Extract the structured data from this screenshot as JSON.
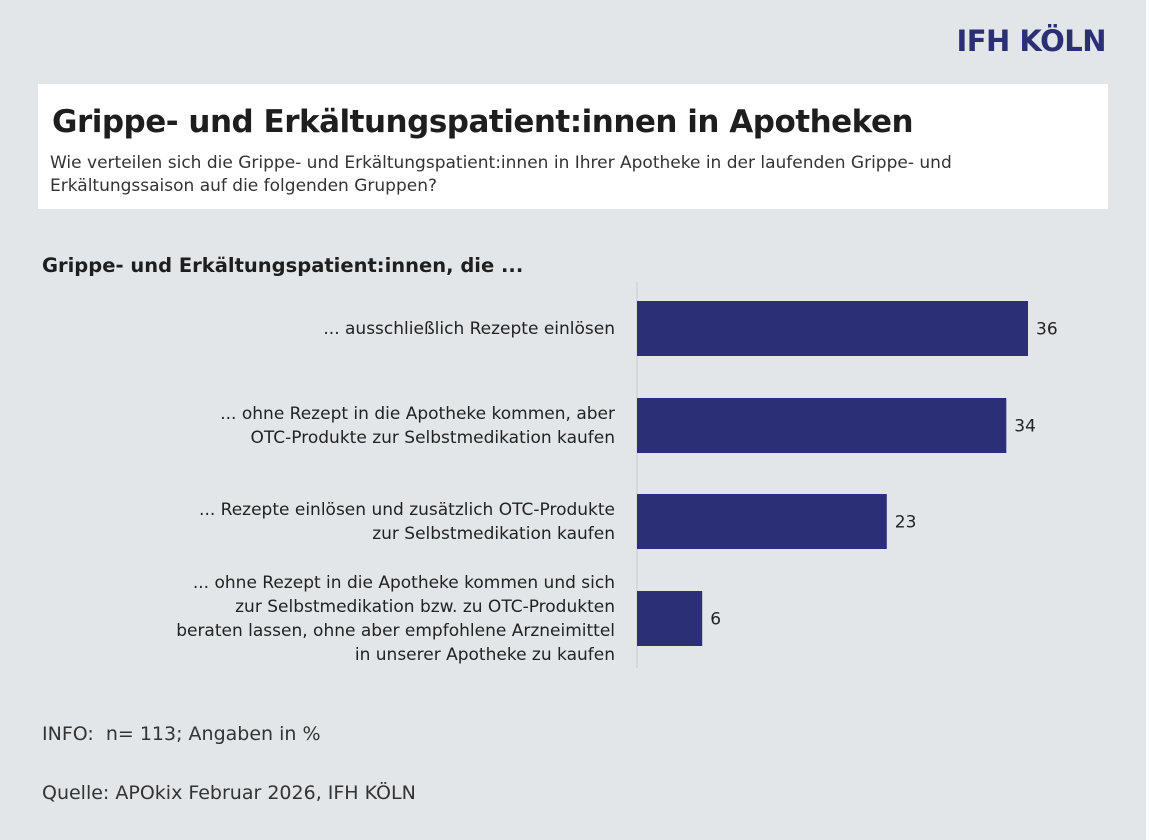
{
  "brand": "IFH KÖLN",
  "header": {
    "title": "Grippe- und Erkältungspatient:innen in Apotheken",
    "subtitle": "Wie verteilen sich die Grippe- und Erkältungspatient:innen in Ihrer Apotheke in der laufenden Grippe- und Erkältungssaison auf die folgenden Gruppen?"
  },
  "colors": {
    "bar": "#2b2f75",
    "background": "#e3e6e9"
  },
  "chart_data": {
    "type": "bar",
    "orientation": "horizontal",
    "title": "Grippe- und Erkältungspatient:innen, die ...",
    "categories": [
      [
        "... ausschließlich Rezepte einlösen"
      ],
      [
        "... ohne Rezept in die Apotheke kommen, aber",
        "OTC-Produkte zur Selbstmedikation kaufen"
      ],
      [
        "... Rezepte einlösen und zusätzlich OTC-Produkte",
        "zur Selbstmedikation kaufen"
      ],
      [
        "... ohne Rezept in die Apotheke kommen und sich",
        "zur Selbstmedikation bzw. zu OTC-Produkten",
        "beraten lassen, ohne aber empfohlene Arzneimittel",
        "in unserer Apotheke zu kaufen"
      ]
    ],
    "values": [
      36,
      34,
      23,
      6
    ],
    "value_labels": [
      "36",
      "34",
      "23",
      "6"
    ],
    "xlim": [
      0,
      40
    ],
    "unit": "%"
  },
  "footer": {
    "info": "INFO:  n= 113; Angaben in %",
    "source": "Quelle: APOkix Februar 2026, IFH KÖLN"
  }
}
